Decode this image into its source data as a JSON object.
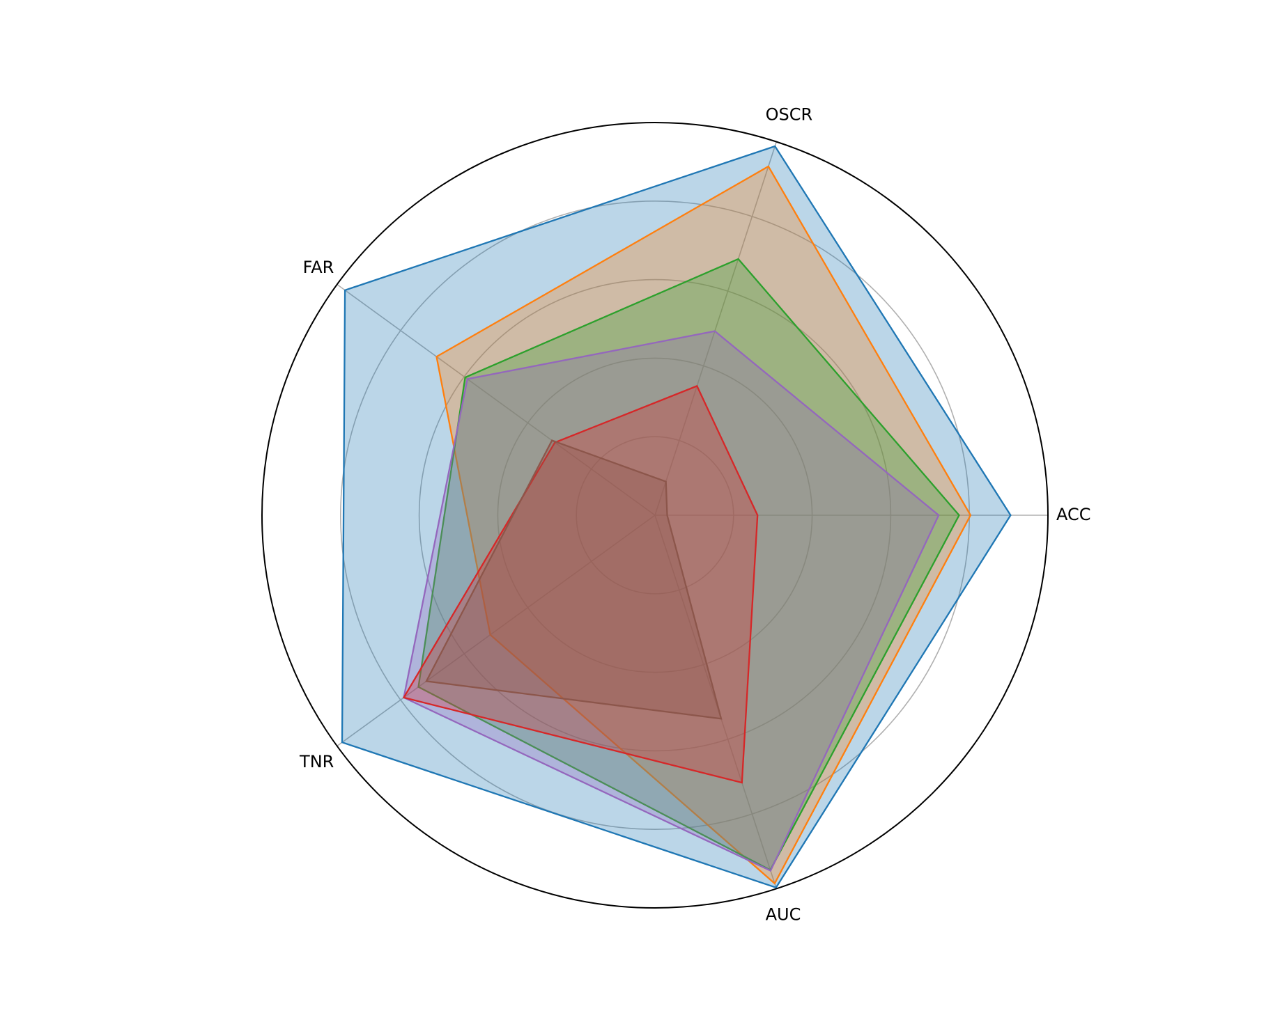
{
  "chart_data": {
    "type": "radar",
    "categories": [
      "ACC",
      "OSCR",
      "FAR",
      "TNR",
      "AUC"
    ],
    "ylim": [
      0,
      1
    ],
    "yticks": [
      0.2,
      0.4,
      0.6,
      0.8
    ],
    "grid": true,
    "series": [
      {
        "color": "#1f77b4",
        "values": [
          0.905,
          0.988,
          0.975,
          0.984,
          0.997
        ]
      },
      {
        "color": "#ff7f0e",
        "values": [
          0.803,
          0.934,
          0.687,
          0.518,
          0.986
        ]
      },
      {
        "color": "#2ca02c",
        "values": [
          0.774,
          0.686,
          0.597,
          0.744,
          0.95
        ]
      },
      {
        "color": "#9467bd",
        "values": [
          0.722,
          0.493,
          0.59,
          0.79,
          0.952
        ]
      },
      {
        "color": "#d62728",
        "values": [
          0.261,
          0.346,
          0.315,
          0.79,
          0.716
        ]
      },
      {
        "color": "#8c564b",
        "values": [
          0.031,
          0.09,
          0.324,
          0.719,
          0.545
        ]
      }
    ]
  }
}
